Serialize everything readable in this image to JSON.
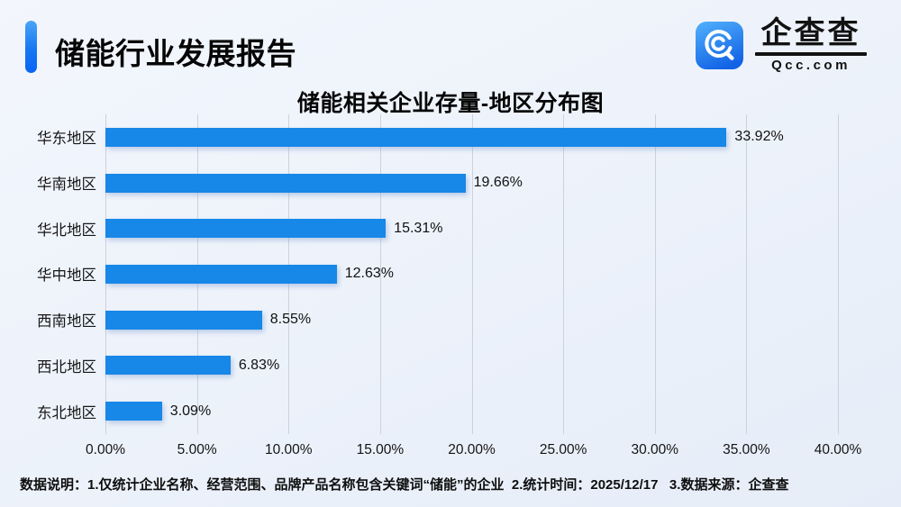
{
  "header": {
    "report_title": "储能行业发展报告",
    "accent_color": "#1677f2",
    "logo": {
      "brand_name": "企查查",
      "brand_domain": "Qcc.com",
      "icon": "qcc-magnifier-icon",
      "icon_gradient_top": "#4fadfa",
      "icon_gradient_bottom": "#1263e5"
    }
  },
  "chart_data": {
    "type": "bar",
    "orientation": "horizontal",
    "title": "储能相关企业存量-地区分布图",
    "categories": [
      "华东地区",
      "华南地区",
      "华北地区",
      "华中地区",
      "西南地区",
      "西北地区",
      "东北地区"
    ],
    "values": [
      33.92,
      19.66,
      15.31,
      12.63,
      8.55,
      6.83,
      3.09
    ],
    "value_labels": [
      "33.92%",
      "19.66%",
      "15.31%",
      "12.63%",
      "8.55%",
      "6.83%",
      "3.09%"
    ],
    "xlabel": "",
    "ylabel": "",
    "xlim": [
      0,
      40
    ],
    "x_ticks": [
      "0.00%",
      "5.00%",
      "10.00%",
      "15.00%",
      "20.00%",
      "25.00%",
      "30.00%",
      "35.00%",
      "40.00%"
    ],
    "grid": true,
    "legend": "none",
    "bar_color": "#1787e8",
    "gridline_color": "#ccd2dd"
  },
  "footer": {
    "note": "数据说明：1.仅统计企业名称、经营范围、品牌产品名称包含关键词“储能”的企业  2.统计时间：2025/12/17   3.数据来源：企查查"
  }
}
